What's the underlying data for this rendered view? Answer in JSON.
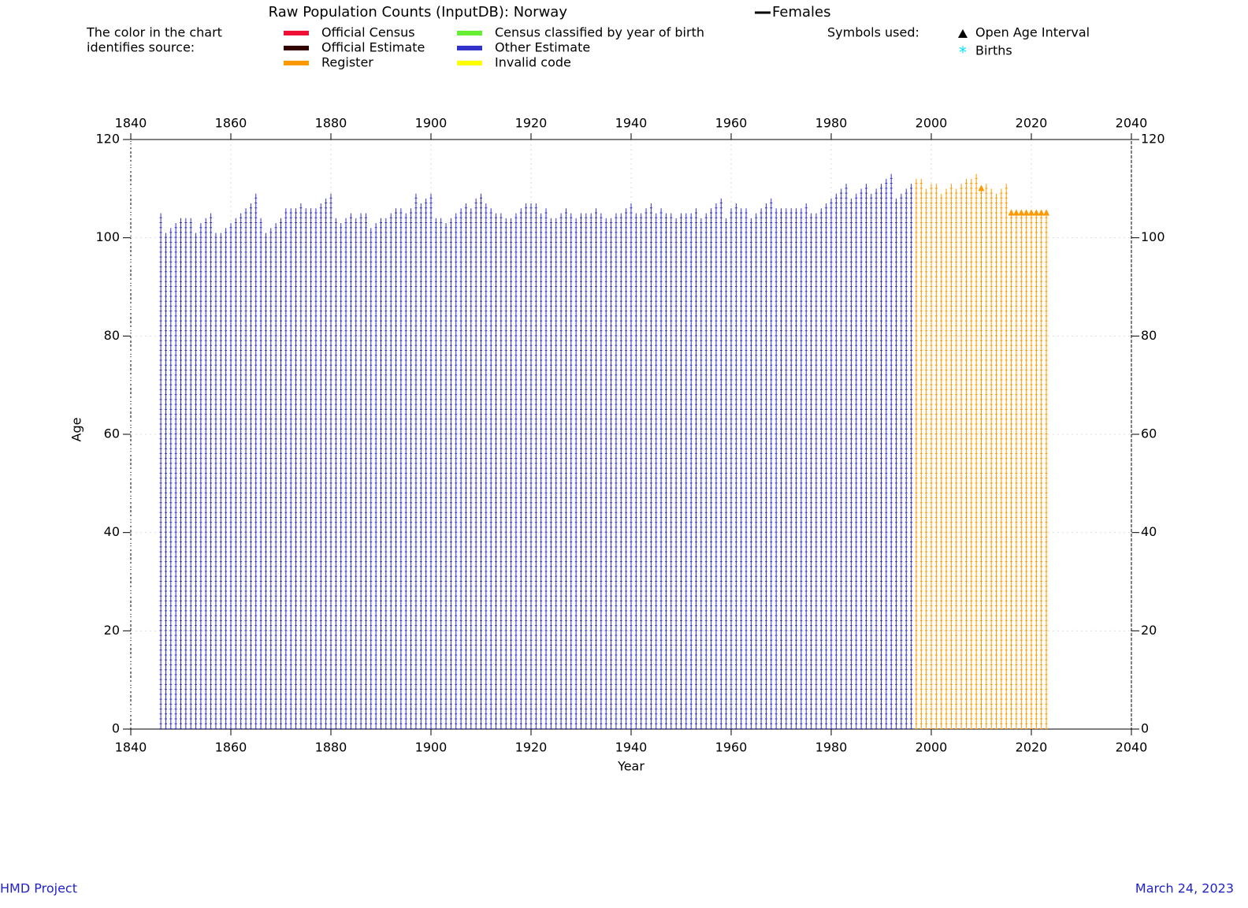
{
  "chart_data": {
    "type": "bar",
    "title": "Raw Population Counts (InputDB): Norway",
    "sex_label": "Females",
    "legend_intro": [
      "The color in the chart",
      "identifies source:"
    ],
    "series": [
      {
        "name": "Official Census",
        "color": "#ee1133",
        "x": [],
        "values": []
      },
      {
        "name": "Official Estimate",
        "color": "#330000",
        "x": [],
        "values": []
      },
      {
        "name": "Register",
        "color": "#ff9900",
        "x": [
          1997,
          1998,
          1999,
          2000,
          2001,
          2002,
          2003,
          2004,
          2005,
          2006,
          2007,
          2008,
          2009,
          2010,
          2011,
          2012,
          2013,
          2014,
          2015,
          2016,
          2017,
          2018,
          2019,
          2020,
          2021,
          2022,
          2023
        ],
        "values": [
          112,
          112,
          110,
          111,
          111,
          109,
          110,
          111,
          110,
          111,
          112,
          112,
          113,
          110,
          111,
          110,
          109,
          110,
          111,
          105,
          105,
          105,
          105,
          105,
          105,
          105,
          105
        ]
      },
      {
        "name": "Census classified by year of birth",
        "color": "#66ee33",
        "x": [],
        "values": []
      },
      {
        "name": "Other Estimate",
        "color": "#3333cc",
        "x": [
          1846,
          1847,
          1848,
          1849,
          1850,
          1851,
          1852,
          1853,
          1854,
          1855,
          1856,
          1857,
          1858,
          1859,
          1860,
          1861,
          1862,
          1863,
          1864,
          1865,
          1866,
          1867,
          1868,
          1869,
          1870,
          1871,
          1872,
          1873,
          1874,
          1875,
          1876,
          1877,
          1878,
          1879,
          1880,
          1881,
          1882,
          1883,
          1884,
          1885,
          1886,
          1887,
          1888,
          1889,
          1890,
          1891,
          1892,
          1893,
          1894,
          1895,
          1896,
          1897,
          1898,
          1899,
          1900,
          1901,
          1902,
          1903,
          1904,
          1905,
          1906,
          1907,
          1908,
          1909,
          1910,
          1911,
          1912,
          1913,
          1914,
          1915,
          1916,
          1917,
          1918,
          1919,
          1920,
          1921,
          1922,
          1923,
          1924,
          1925,
          1926,
          1927,
          1928,
          1929,
          1930,
          1931,
          1932,
          1933,
          1934,
          1935,
          1936,
          1937,
          1938,
          1939,
          1940,
          1941,
          1942,
          1943,
          1944,
          1945,
          1946,
          1947,
          1948,
          1949,
          1950,
          1951,
          1952,
          1953,
          1954,
          1955,
          1956,
          1957,
          1958,
          1959,
          1960,
          1961,
          1962,
          1963,
          1964,
          1965,
          1966,
          1967,
          1968,
          1969,
          1970,
          1971,
          1972,
          1973,
          1974,
          1975,
          1976,
          1977,
          1978,
          1979,
          1980,
          1981,
          1982,
          1983,
          1984,
          1985,
          1986,
          1987,
          1988,
          1989,
          1990,
          1991,
          1992,
          1993,
          1994,
          1995,
          1996
        ],
        "values": [
          105,
          101,
          102,
          103,
          104,
          104,
          104,
          101,
          103,
          104,
          105,
          101,
          101,
          102,
          103,
          104,
          105,
          106,
          107,
          109,
          104,
          101,
          102,
          103,
          104,
          106,
          106,
          106,
          107,
          106,
          106,
          106,
          107,
          108,
          109,
          104,
          103,
          104,
          105,
          104,
          105,
          105,
          102,
          103,
          104,
          104,
          105,
          106,
          106,
          105,
          106,
          109,
          107,
          108,
          109,
          104,
          104,
          103,
          104,
          105,
          106,
          107,
          106,
          108,
          109,
          107,
          106,
          105,
          105,
          104,
          104,
          105,
          106,
          107,
          107,
          107,
          105,
          106,
          104,
          104,
          105,
          106,
          105,
          104,
          105,
          105,
          105,
          106,
          105,
          104,
          104,
          105,
          105,
          106,
          107,
          105,
          105,
          106,
          107,
          105,
          106,
          105,
          105,
          104,
          105,
          105,
          105,
          106,
          104,
          105,
          106,
          107,
          108,
          104,
          106,
          107,
          106,
          106,
          104,
          105,
          106,
          107,
          108,
          106,
          106,
          106,
          106,
          106,
          106,
          107,
          105,
          105,
          106,
          107,
          108,
          109,
          110,
          111,
          108,
          109,
          110,
          111,
          109,
          110,
          111,
          112,
          113,
          108,
          109,
          110,
          111
        ]
      },
      {
        "name": "Invalid code",
        "color": "#ffff00",
        "x": [],
        "values": []
      }
    ],
    "symbols_label": "Symbols used:",
    "open_age": {
      "name": "Open Age Interval",
      "color": "#ff9900",
      "x": [
        2010,
        2016,
        2017,
        2018,
        2019,
        2020,
        2021,
        2022,
        2023
      ],
      "values": [
        110,
        105,
        105,
        105,
        105,
        105,
        105,
        105,
        105
      ]
    },
    "births_label": "Births",
    "xlabel": "Year",
    "ylabel": "Age",
    "xlim": [
      1840,
      2040
    ],
    "xticks": [
      1840,
      1860,
      1880,
      1900,
      1920,
      1940,
      1960,
      1980,
      2000,
      2020,
      2040
    ],
    "ylim": [
      0,
      120
    ],
    "yticks": [
      0,
      20,
      40,
      60,
      80,
      100,
      120
    ],
    "grid": true,
    "footer_left": "HMD Project",
    "footer_right": "March 24, 2023"
  }
}
